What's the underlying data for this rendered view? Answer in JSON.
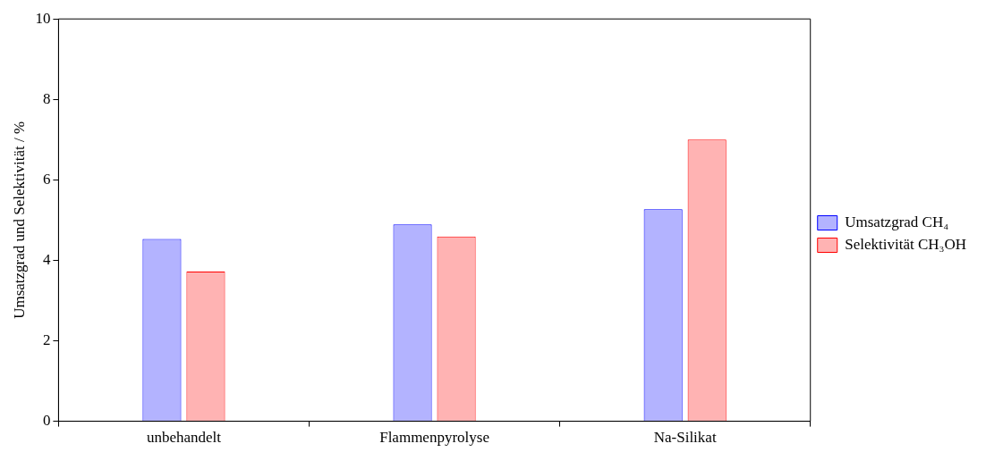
{
  "chart_data": {
    "type": "bar",
    "ylabel": "Umsatzgrad und Selektivität / %",
    "categories": [
      "unbehandelt",
      "Flammenpyrolyse",
      "Na-Silikat"
    ],
    "series": [
      {
        "name": "Umsatzgrad CH₄",
        "color": "#b3b3ff",
        "values": [
          4.53,
          4.89,
          5.27
        ]
      },
      {
        "name": "Selektivität CH₃OH",
        "color": "#ffb3b3",
        "values": [
          3.72,
          4.59,
          7.0
        ]
      }
    ],
    "ylim": [
      0,
      10
    ],
    "yticks": [
      0,
      2,
      4,
      6,
      8,
      10
    ],
    "grid": false,
    "legend": "right"
  }
}
